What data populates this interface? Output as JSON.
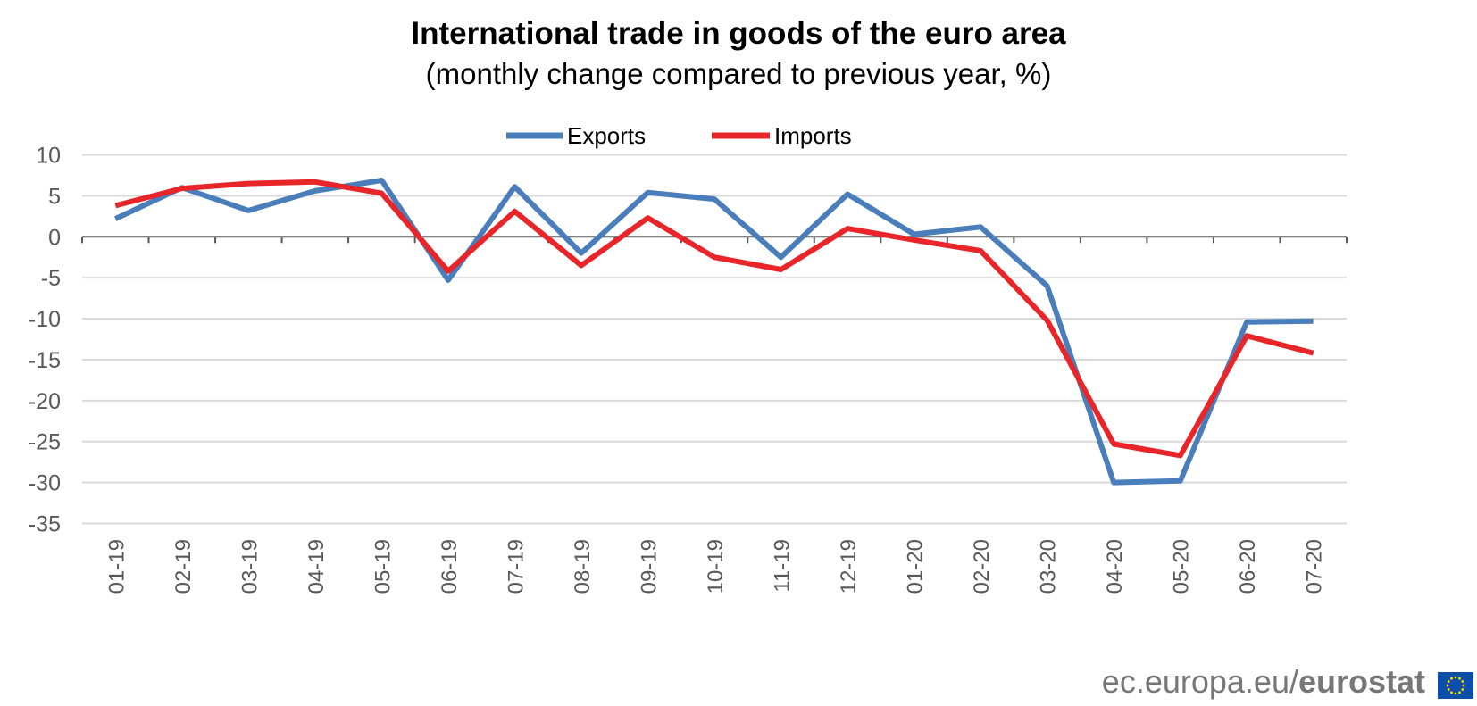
{
  "header": {
    "title": "International trade in goods of the euro area",
    "subtitle": "(monthly change compared to previous year, %)"
  },
  "footer": {
    "site": "ec.europa.eu/",
    "brand": "eurostat",
    "flag_icon": "eu-flag-icon"
  },
  "colors": {
    "exports": "#4a7ebb",
    "imports": "#e8262a",
    "grid": "#d9d9d9",
    "axis": "#595959"
  },
  "chart_data": {
    "type": "line",
    "title": "International trade in goods of the euro area",
    "subtitle": "(monthly change compared to previous year, %)",
    "xlabel": "",
    "ylabel": "",
    "categories": [
      "01-19",
      "02-19",
      "03-19",
      "04-19",
      "05-19",
      "06-19",
      "07-19",
      "08-19",
      "09-19",
      "10-19",
      "11-19",
      "12-19",
      "01-20",
      "02-20",
      "03-20",
      "04-20",
      "05-20",
      "06-20",
      "07-20"
    ],
    "series": [
      {
        "name": "Exports",
        "color": "#4a7ebb",
        "values": [
          2.2,
          6.0,
          3.2,
          5.6,
          6.9,
          -5.3,
          6.1,
          -2.0,
          5.4,
          4.6,
          -2.5,
          5.2,
          0.3,
          1.2,
          -6.0,
          -30.0,
          -29.8,
          -10.4,
          -10.3
        ]
      },
      {
        "name": "Imports",
        "color": "#e8262a",
        "values": [
          3.8,
          5.9,
          6.5,
          6.7,
          5.3,
          -4.2,
          3.1,
          -3.5,
          2.3,
          -2.5,
          -4.0,
          1.0,
          -0.4,
          -1.7,
          -10.2,
          -25.3,
          -26.7,
          -12.1,
          -14.2
        ]
      }
    ],
    "ylim": [
      -35,
      10
    ],
    "yticks": [
      "10",
      "5",
      "0",
      "-5",
      "-10",
      "-15",
      "-20",
      "-25",
      "-30",
      "-35"
    ],
    "grid": true,
    "legend": "top-center"
  }
}
